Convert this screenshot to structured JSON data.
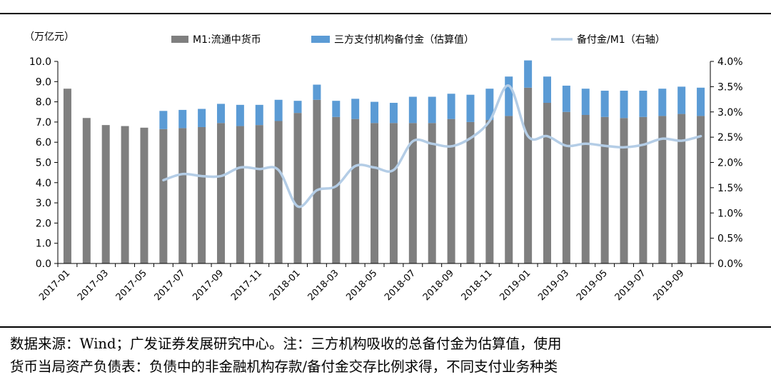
{
  "chart_data": {
    "type": "bar",
    "title": "",
    "left_axis_unit": "（万亿元）",
    "categories": [
      "2017-01",
      "2017-02",
      "2017-03",
      "2017-04",
      "2017-05",
      "2017-06",
      "2017-07",
      "2017-08",
      "2017-09",
      "2017-10",
      "2017-11",
      "2017-12",
      "2018-01",
      "2018-02",
      "2018-03",
      "2018-04",
      "2018-05",
      "2018-06",
      "2018-07",
      "2018-08",
      "2018-09",
      "2018-10",
      "2018-11",
      "2018-12",
      "2019-01",
      "2019-02",
      "2019-03",
      "2019-04",
      "2019-05",
      "2019-06",
      "2019-07",
      "2019-08",
      "2019-09",
      "2019-10"
    ],
    "x_tick_labels": [
      "2017-01",
      "2017-03",
      "2017-05",
      "2017-07",
      "2017-09",
      "2017-11",
      "2018-01",
      "2018-03",
      "2018-05",
      "2018-07",
      "2018-09",
      "2018-11",
      "2019-01",
      "2019-03",
      "2019-05",
      "2019-07",
      "2019-09"
    ],
    "series": [
      {
        "name": "M1:流通中货币",
        "kind": "bar",
        "color": "#7f7f7f",
        "values": [
          8.65,
          7.2,
          6.85,
          6.8,
          6.72,
          6.65,
          6.7,
          6.75,
          6.95,
          6.8,
          6.85,
          7.05,
          7.45,
          8.1,
          7.25,
          7.15,
          6.95,
          6.95,
          6.95,
          6.95,
          7.15,
          7.0,
          7.1,
          7.3,
          8.7,
          7.95,
          7.5,
          7.35,
          7.25,
          7.2,
          7.25,
          7.3,
          7.4,
          7.3
        ]
      },
      {
        "name": "三方支付机构备付金（估算值）",
        "kind": "bar-stack",
        "color": "#5b9bd5",
        "values": [
          0,
          0,
          0,
          0,
          0,
          0.9,
          0.9,
          0.9,
          0.95,
          1.05,
          1.0,
          1.05,
          0.6,
          0.75,
          0.8,
          1.0,
          1.05,
          1.0,
          1.3,
          1.3,
          1.25,
          1.35,
          1.55,
          1.95,
          1.35,
          1.3,
          1.3,
          1.3,
          1.3,
          1.35,
          1.3,
          1.35,
          1.35,
          1.4
        ]
      },
      {
        "name": "备付金/M1（右轴）",
        "kind": "line",
        "axis": "right",
        "color": "#b4cde6",
        "values": [
          null,
          null,
          null,
          null,
          null,
          1.65,
          1.77,
          1.73,
          1.73,
          1.9,
          1.87,
          1.85,
          1.13,
          1.45,
          1.53,
          1.93,
          1.9,
          1.85,
          2.42,
          2.37,
          2.32,
          2.48,
          2.82,
          3.52,
          2.52,
          2.52,
          2.33,
          2.37,
          2.33,
          2.3,
          2.35,
          2.47,
          2.43,
          2.52
        ]
      }
    ],
    "y_left": {
      "lim": [
        0,
        10
      ],
      "ticks": [
        "0.0",
        "1.0",
        "2.0",
        "3.0",
        "4.0",
        "5.0",
        "6.0",
        "7.0",
        "8.0",
        "9.0",
        "10.0"
      ]
    },
    "y_right": {
      "lim": [
        0,
        4
      ],
      "ticks": [
        "0.0%",
        "0.5%",
        "1.0%",
        "1.5%",
        "2.0%",
        "2.5%",
        "3.0%",
        "3.5%",
        "4.0%"
      ]
    },
    "grid": false,
    "legend_position": "top"
  },
  "footer": {
    "line1": "数据来源：Wind；广发证券发展研究中心。注：三方机构吸收的总备付金为估算值，使用",
    "line2": "货币当局资产负债表：负债中的非金融机构存款/备付金交存比例求得，不同支付业务种类"
  }
}
